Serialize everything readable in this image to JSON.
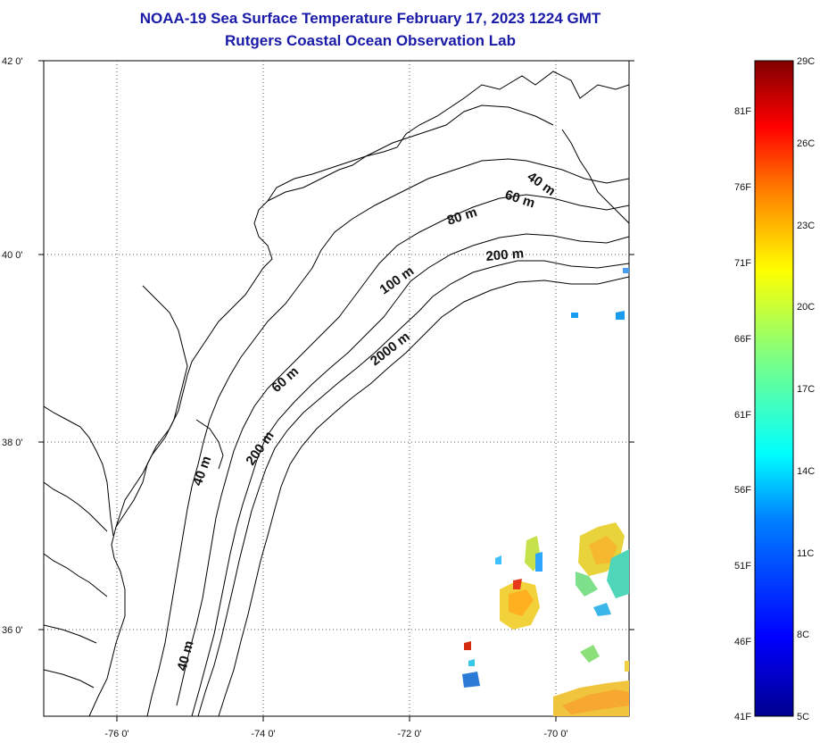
{
  "title": {
    "line1": "NOAA-19 Sea Surface Temperature February 17, 2023 1224 GMT",
    "line2": "Rutgers Coastal Ocean Observation Lab"
  },
  "map": {
    "lat_range": [
      35,
      42
    ],
    "lon_range": [
      -77,
      -69
    ],
    "lat_ticks": [
      "42 0'",
      "40 0'",
      "38 0'",
      "36 0'"
    ],
    "lon_ticks": [
      "-76 0'",
      "-74 0'",
      "-72 0'",
      "-70 0'"
    ],
    "contour_labels": [
      "40 m",
      "60 m",
      "80 m",
      "200 m",
      "100 m",
      "2000 m",
      "60 m",
      "200 m",
      "40 m",
      "40 m"
    ],
    "land_color": "#ffffff",
    "line_color": "#000000"
  },
  "colorbar": {
    "celsius_labels": [
      "29C",
      "26C",
      "23C",
      "20C",
      "17C",
      "14C",
      "11C",
      "8C",
      "5C"
    ],
    "fahrenheit_labels": [
      "81F",
      "76F",
      "71F",
      "66F",
      "61F",
      "56F",
      "51F",
      "46F",
      "41F"
    ],
    "min_c": 5,
    "max_c": 29,
    "colors": [
      "#00008f",
      "#0000ff",
      "#0080ff",
      "#00ffff",
      "#80ff80",
      "#ffff00",
      "#ff8000",
      "#ff0000",
      "#800000"
    ]
  }
}
